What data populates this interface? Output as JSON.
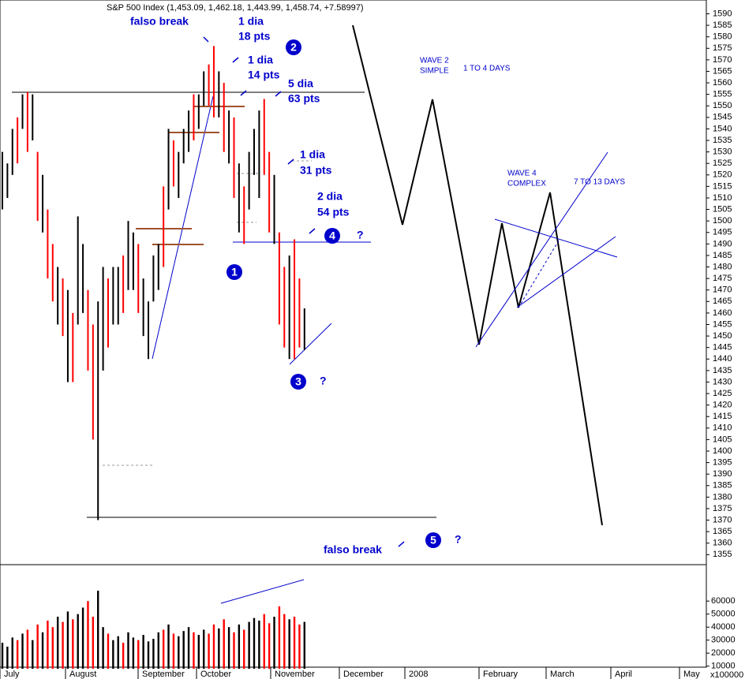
{
  "chart_data": {
    "type": "range-bar",
    "title": "S&P 500 Index (1,453.09, 1,462.18, 1,443.99, 1,458.74, +7.58997)",
    "high": [
      1530,
      1525,
      1540,
      1545,
      1555,
      1556,
      1555,
      1530,
      1520,
      1505,
      1490,
      1480,
      1475,
      1470,
      1460,
      1502,
      1490,
      1470,
      1455,
      1465,
      1480,
      1475,
      1480,
      1480,
      1485,
      1500,
      1495,
      1490,
      1475,
      1465,
      1485,
      1490,
      1515,
      1540,
      1535,
      1530,
      1540,
      1548,
      1555,
      1555,
      1565,
      1568,
      1576,
      1565,
      1560,
      1548,
      1545,
      1525,
      1515,
      1530,
      1540,
      1548,
      1553,
      1530,
      1520,
      1495,
      1480,
      1485,
      1492,
      1475,
      1462
    ],
    "low": [
      1505,
      1510,
      1520,
      1525,
      1540,
      1530,
      1535,
      1500,
      1495,
      1475,
      1465,
      1455,
      1450,
      1430,
      1430,
      1455,
      1460,
      1435,
      1405,
      1370,
      1435,
      1445,
      1455,
      1455,
      1460,
      1470,
      1470,
      1460,
      1450,
      1440,
      1465,
      1470,
      1480,
      1505,
      1515,
      1510,
      1525,
      1530,
      1535,
      1540,
      1550,
      1550,
      1545,
      1545,
      1530,
      1525,
      1510,
      1495,
      1490,
      1505,
      1520,
      1510,
      1520,
      1495,
      1490,
      1455,
      1445,
      1440,
      1440,
      1445,
      1444
    ],
    "colors": [
      "black",
      "black",
      "black",
      "red",
      "black",
      "red",
      "black",
      "red",
      "black",
      "red",
      "red",
      "black",
      "red",
      "black",
      "red",
      "black",
      "black",
      "red",
      "red",
      "black",
      "black",
      "red",
      "black",
      "black",
      "red",
      "black",
      "black",
      "red",
      "black",
      "black",
      "black",
      "black",
      "red",
      "black",
      "red",
      "black",
      "black",
      "black",
      "red",
      "black",
      "black",
      "red",
      "red",
      "black",
      "red",
      "black",
      "red",
      "black",
      "red",
      "black",
      "black",
      "black",
      "red",
      "red",
      "black",
      "red",
      "red",
      "black",
      "red",
      "red",
      "black"
    ],
    "ylim": [
      1351,
      1596
    ],
    "yticks": [
      1590,
      1585,
      1580,
      1575,
      1570,
      1565,
      1560,
      1555,
      1550,
      1545,
      1540,
      1535,
      1530,
      1525,
      1520,
      1515,
      1510,
      1505,
      1500,
      1495,
      1490,
      1485,
      1480,
      1475,
      1470,
      1465,
      1460,
      1455,
      1450,
      1445,
      1440,
      1435,
      1430,
      1425,
      1420,
      1415,
      1410,
      1405,
      1400,
      1395,
      1390,
      1385,
      1380,
      1375,
      1370,
      1365,
      1360,
      1355
    ],
    "volume": {
      "values": [
        28000,
        25000,
        32000,
        30000,
        35000,
        38000,
        30000,
        42000,
        36000,
        45000,
        40000,
        48000,
        44000,
        52000,
        46000,
        50000,
        55000,
        60000,
        48000,
        68000,
        40000,
        35000,
        30000,
        33000,
        28000,
        36000,
        32000,
        30000,
        34000,
        29000,
        31000,
        36000,
        38000,
        42000,
        35000,
        33000,
        37000,
        40000,
        36000,
        34000,
        38000,
        35000,
        42000,
        39000,
        46000,
        40000,
        36000,
        42000,
        38000,
        44000,
        47000,
        45000,
        50000,
        43000,
        48000,
        56000,
        50000,
        46000,
        48000,
        42000,
        44000
      ],
      "ylim": [
        8000,
        88000
      ],
      "yticks": [
        10000,
        20000,
        30000,
        40000,
        50000,
        60000
      ],
      "unit": "x100000"
    },
    "x_axis_labels": [
      "July",
      "August",
      "September",
      "October",
      "November",
      "December",
      "2008",
      "February",
      "March",
      "April",
      "May"
    ],
    "annotations": [
      "falso break",
      "1 dia",
      "18 pts",
      "1 dia",
      "14 pts",
      "5 dia",
      "63 pts",
      "1 dia",
      "31 pts",
      "2 dia",
      "54 pts",
      "WAVE 2",
      "SIMPLE",
      "1 TO 4 DAYS",
      "WAVE 4",
      "COMPLEX",
      "7 TO 13 DAYS",
      "falso break"
    ],
    "wave_labels": [
      "1",
      "2",
      "3",
      "4",
      "5"
    ],
    "question_marks": [
      "?",
      "?",
      "?"
    ]
  }
}
